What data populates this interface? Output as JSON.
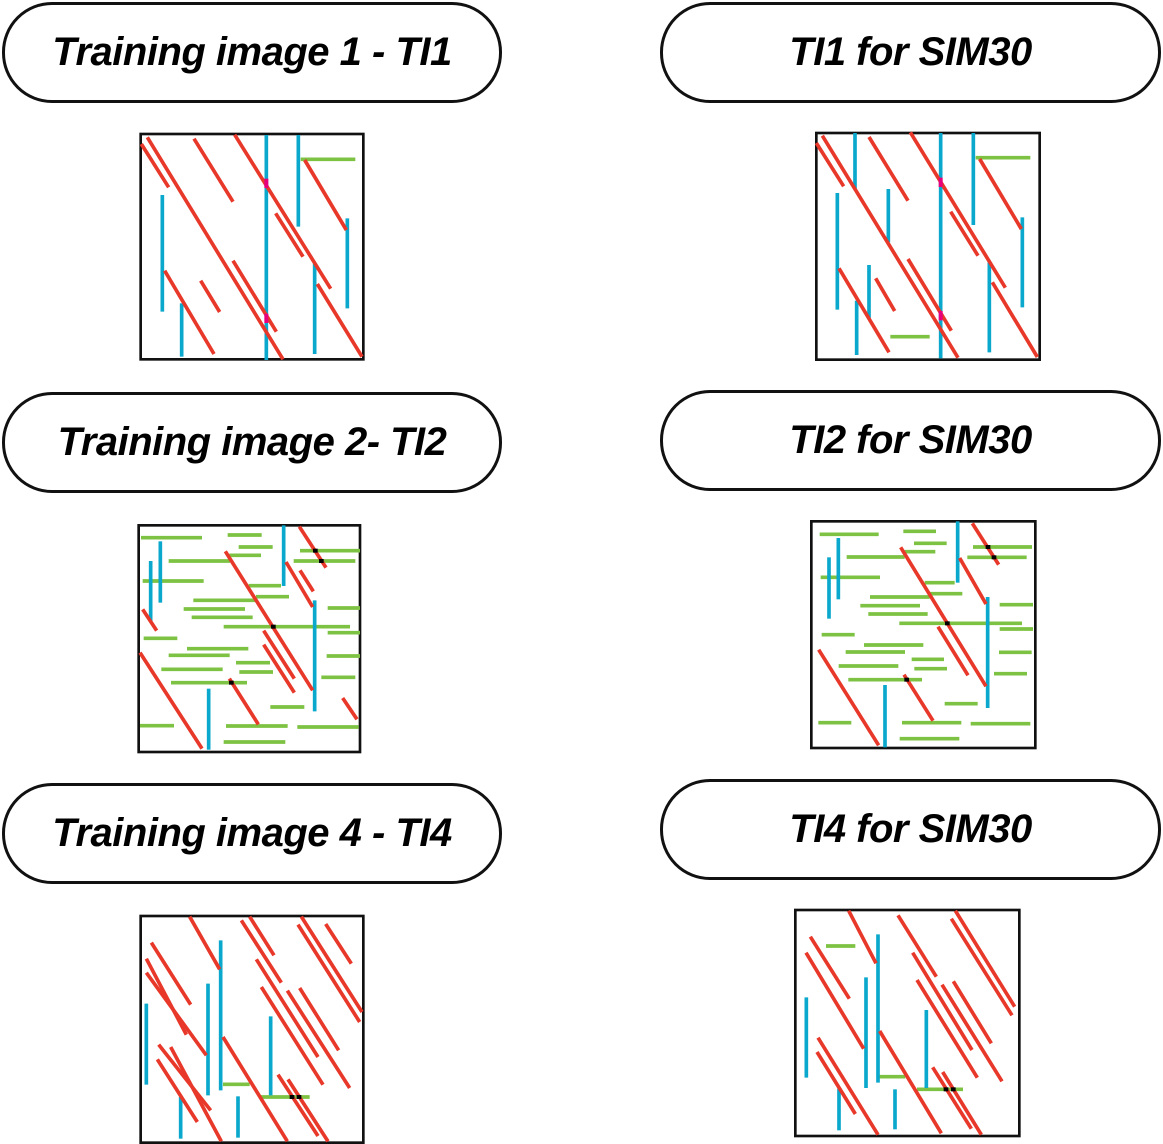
{
  "colors": {
    "fault_red": "#e8382a",
    "fracture_blue": "#0aa8cc",
    "bed_green": "#7dc242",
    "intersection_magenta": "#e6007e",
    "intersection_black": "#000000"
  },
  "left_column": {
    "titles": [
      "Training image 1 - TI1",
      "Training image 2- TI2",
      "Training image 4 - TI4"
    ]
  },
  "right_column": {
    "titles": [
      "TI1 for SIM30",
      "TI2 for SIM30",
      "TI4 for SIM30"
    ]
  }
}
